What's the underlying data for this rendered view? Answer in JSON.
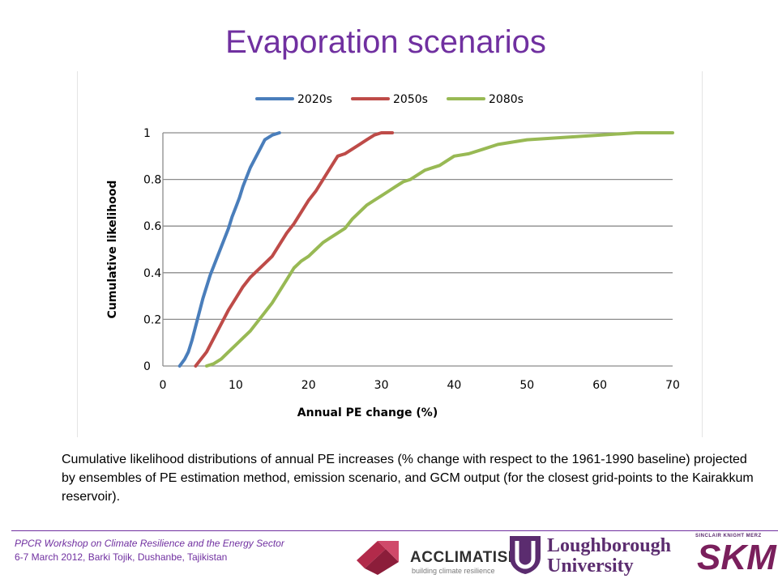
{
  "slide": {
    "title": "Evaporation scenarios",
    "caption": "Cumulative likelihood distributions of annual PE increases (% change with respect to the 1961-1990 baseline) projected by ensembles of PE estimation method, emission scenario, and GCM output (for the closest grid-points to the Kairakkum reservoir)."
  },
  "footer": {
    "line1": "PPCR Workshop on Climate Resilience and the Energy Sector",
    "line2": "6-7 March 2012, Barki Tojik, Dushanbe, Tajikistan"
  },
  "logos": {
    "acclimatise": {
      "name": "ACCLIMATISE",
      "tagline": "building climate resilience"
    },
    "loughborough": {
      "line1": "Loughborough",
      "line2": "University"
    },
    "skm": {
      "tagline": "SINCLAIR KNIGHT MERZ",
      "name": "SKM"
    }
  },
  "chart_data": {
    "type": "line",
    "title": "",
    "xlabel": "Annual PE change (%)",
    "ylabel": "Cumulative likelihood",
    "xlim": [
      0,
      70
    ],
    "ylim": [
      0,
      1
    ],
    "xticks": [
      0,
      10,
      20,
      30,
      40,
      50,
      60,
      70
    ],
    "yticks": [
      0,
      0.2,
      0.4,
      0.6,
      0.8,
      1
    ],
    "ytick_labels": [
      "0",
      "0.2",
      "0.4",
      "0.6",
      "0.8",
      "1"
    ],
    "grid": true,
    "legend_position": "top",
    "series": [
      {
        "name": "2020s",
        "color": "#4a7ebb",
        "x": [
          2.3,
          3,
          3.5,
          4,
          4.5,
          5,
          5.5,
          6,
          6.5,
          7,
          7.5,
          8,
          8.5,
          9,
          9.5,
          10,
          10.5,
          11,
          11.5,
          12,
          12.5,
          13,
          13.5,
          14,
          15,
          16
        ],
        "y": [
          0,
          0.03,
          0.06,
          0.11,
          0.17,
          0.23,
          0.29,
          0.34,
          0.39,
          0.43,
          0.47,
          0.51,
          0.55,
          0.59,
          0.64,
          0.68,
          0.72,
          0.77,
          0.81,
          0.85,
          0.88,
          0.91,
          0.94,
          0.97,
          0.99,
          1.0
        ]
      },
      {
        "name": "2050s",
        "color": "#be4b48",
        "x": [
          4.5,
          5,
          6,
          7,
          8,
          9,
          10,
          11,
          12,
          13,
          14,
          15,
          16,
          17,
          18,
          19,
          20,
          21,
          22,
          23,
          24,
          25,
          26,
          27,
          28,
          29,
          30,
          31.5
        ],
        "y": [
          0,
          0.02,
          0.06,
          0.12,
          0.18,
          0.24,
          0.29,
          0.34,
          0.38,
          0.41,
          0.44,
          0.47,
          0.52,
          0.57,
          0.61,
          0.66,
          0.71,
          0.75,
          0.8,
          0.85,
          0.9,
          0.91,
          0.93,
          0.95,
          0.97,
          0.99,
          1.0,
          1.0
        ]
      },
      {
        "name": "2080s",
        "color": "#98b954",
        "x": [
          6,
          7,
          8,
          9,
          10,
          11,
          12,
          13,
          14,
          15,
          16,
          17,
          18,
          19,
          20,
          21,
          22,
          23,
          24,
          25,
          26,
          27,
          28,
          29,
          30,
          31,
          32,
          33,
          34,
          35,
          36,
          37,
          38,
          39,
          40,
          42,
          44,
          46,
          48,
          50,
          55,
          60,
          65,
          70
        ],
        "y": [
          0,
          0.01,
          0.03,
          0.06,
          0.09,
          0.12,
          0.15,
          0.19,
          0.23,
          0.27,
          0.32,
          0.37,
          0.42,
          0.45,
          0.47,
          0.5,
          0.53,
          0.55,
          0.57,
          0.59,
          0.63,
          0.66,
          0.69,
          0.71,
          0.73,
          0.75,
          0.77,
          0.79,
          0.8,
          0.82,
          0.84,
          0.85,
          0.86,
          0.88,
          0.9,
          0.91,
          0.93,
          0.95,
          0.96,
          0.97,
          0.98,
          0.99,
          1.0,
          1.0
        ]
      }
    ]
  }
}
